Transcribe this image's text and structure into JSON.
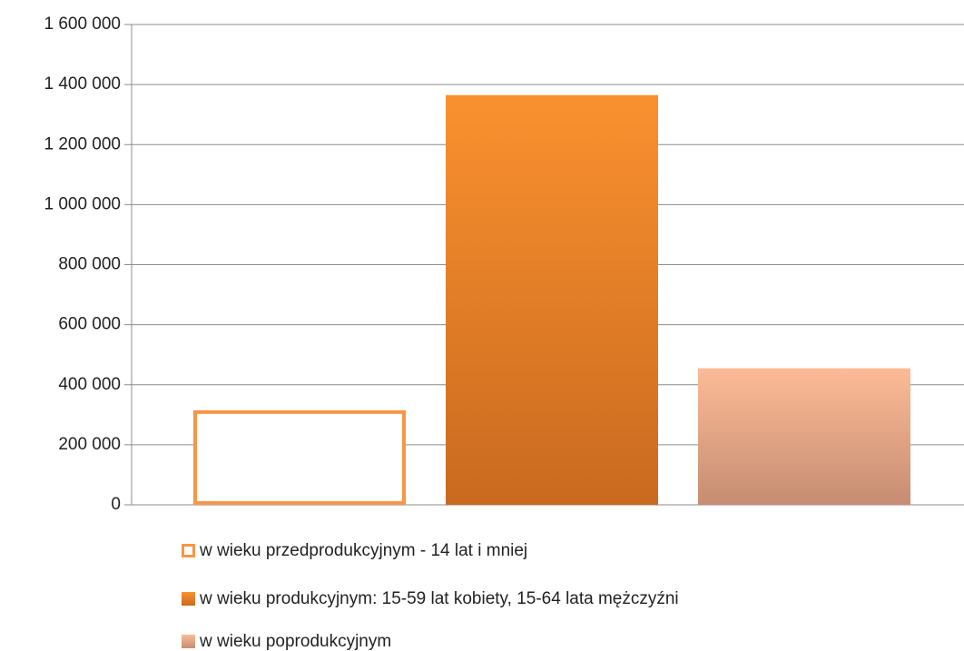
{
  "chart_data": {
    "type": "bar",
    "series": [
      {
        "name": "w wieku przedprodukcyjnym - 14 lat i mniej",
        "color": "#f79646",
        "style": "outline",
        "values": [
          315000
        ]
      },
      {
        "name": "w wieku produkcyjnym: 15-59 lat kobiety, 15-64 lata mężczyźni",
        "color": "#fa9130",
        "gradient_end": "#c96a1f",
        "style": "gradient",
        "values": [
          1365000
        ]
      },
      {
        "name": "w wieku poprodukcyjnym",
        "color": "#fcbb96",
        "gradient_end": "#c68d73",
        "style": "gradient",
        "values": [
          455000
        ]
      }
    ],
    "ylim": [
      0,
      1600000
    ],
    "yticks": [
      0,
      {
        "value": 200000,
        "label": "200 000"
      },
      {
        "value": 400000,
        "label": "400 000"
      },
      {
        "value": 600000,
        "label": "600 000"
      },
      {
        "value": 800000,
        "label": "800 000"
      },
      {
        "value": 1000000,
        "label": "1 000 000"
      },
      {
        "value": 1200000,
        "label": "1 200 000"
      },
      {
        "value": 1400000,
        "label": "1 400 000"
      },
      {
        "value": 1600000,
        "label": "1 600 000"
      }
    ],
    "grid": true,
    "legend": "bottom"
  }
}
